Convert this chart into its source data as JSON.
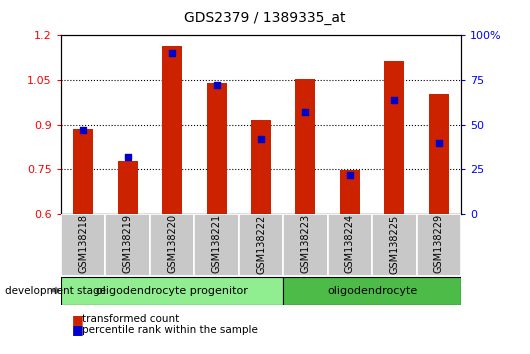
{
  "title": "GDS2379 / 1389335_at",
  "samples": [
    "GSM138218",
    "GSM138219",
    "GSM138220",
    "GSM138221",
    "GSM138222",
    "GSM138223",
    "GSM138224",
    "GSM138225",
    "GSM138229"
  ],
  "transformed_count": [
    0.887,
    0.778,
    1.163,
    1.04,
    0.915,
    1.052,
    0.748,
    1.113,
    1.002
  ],
  "percentile_rank": [
    47,
    32,
    90,
    72,
    42,
    57,
    22,
    64,
    40
  ],
  "y_min": 0.6,
  "y_max": 1.2,
  "y_ticks": [
    0.6,
    0.75,
    0.9,
    1.05,
    1.2
  ],
  "right_y_ticks": [
    0,
    25,
    50,
    75,
    100
  ],
  "groups": [
    {
      "label": "oligodendrocyte progenitor",
      "start": 0,
      "end": 4,
      "color": "#90EE90"
    },
    {
      "label": "oligodendrocyte",
      "start": 5,
      "end": 8,
      "color": "#4CBB47"
    }
  ],
  "bar_color": "#CC2200",
  "dot_color": "#0000CC",
  "bar_width": 0.45,
  "background_color": "#FFFFFF",
  "tick_area_color": "#C8C8C8",
  "group_border_color": "#000000",
  "spine_color": "#000000"
}
